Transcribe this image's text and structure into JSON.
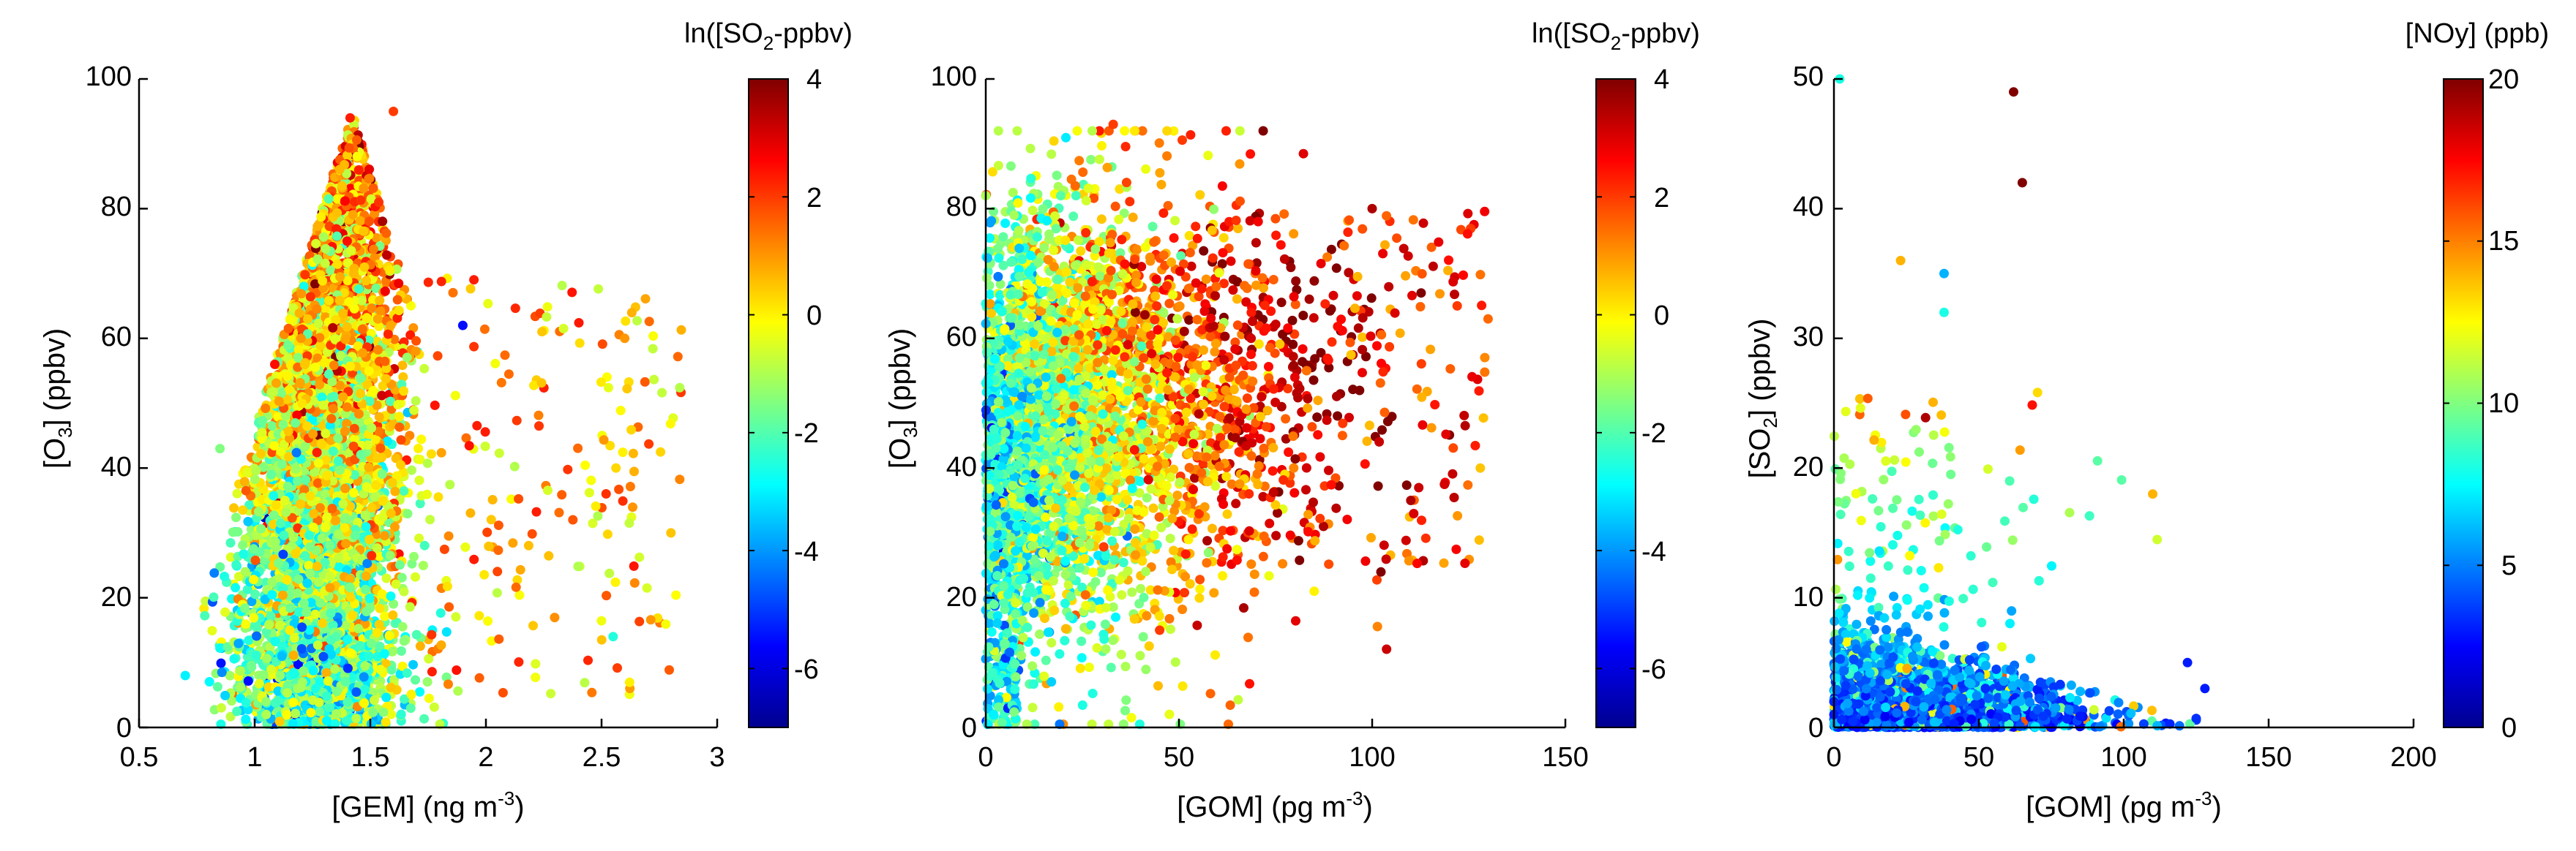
{
  "chart_data": [
    {
      "type": "scatter",
      "title": "",
      "xlabel": "[GEM]  (ng m^-3)",
      "ylabel": "[O3]  (ppbv)",
      "xlim": [
        0.5,
        3
      ],
      "ylim": [
        0,
        100
      ],
      "xticks": [
        "0.5",
        "1",
        "1.5",
        "2",
        "2.5",
        "3"
      ],
      "yticks": [
        "0",
        "20",
        "40",
        "60",
        "80",
        "100"
      ],
      "colorbar": {
        "label": "ln([SO2-ppbv)",
        "range": [
          -7,
          4
        ],
        "ticks": [
          "-6",
          "-4",
          "-2",
          "0",
          "2",
          "4"
        ],
        "colormap": "jet"
      },
      "points_description": "dense cloud of ~6000 points; GEM mostly 0.9-1.8 ng m^-3, O3 0-95 ppbv; sparse points GEM 1.8-2.85",
      "points_sample": [
        [
          0.7,
          8,
          -3
        ],
        [
          0.85,
          43,
          -1.5
        ],
        [
          1.2,
          60,
          1
        ],
        [
          1.4,
          75,
          2.5
        ],
        [
          1.6,
          95,
          2
        ],
        [
          1.9,
          62,
          -5.5
        ],
        [
          2.6,
          60,
          1
        ],
        [
          2.8,
          30,
          0.5
        ],
        [
          2.55,
          14,
          -2.5
        ],
        [
          1.05,
          2,
          -1
        ]
      ]
    },
    {
      "type": "scatter",
      "title": "",
      "xlabel": "[GOM]  (pg m^-3)",
      "ylabel": "[O3]  (ppbv)",
      "xlim": [
        0,
        150
      ],
      "ylim": [
        0,
        100
      ],
      "xticks": [
        "0",
        "50",
        "100",
        "150"
      ],
      "yticks": [
        "0",
        "20",
        "40",
        "60",
        "80",
        "100"
      ],
      "colorbar": {
        "label": "ln([SO2-ppbv)",
        "range": [
          -7,
          4
        ],
        "ticks": [
          "-6",
          "-4",
          "-2",
          "0",
          "2",
          "4"
        ],
        "colormap": "jet"
      },
      "points_description": "~5000 points; GOM 0-130 pg m^-3, O3 0-93 ppbv; higher SO2 at larger GOM",
      "points_sample": [
        [
          33,
          93,
          2
        ],
        [
          100,
          80,
          3.5
        ],
        [
          122,
          65,
          2
        ],
        [
          130,
          63,
          1.5
        ],
        [
          128,
          40,
          0.5
        ],
        [
          110,
          35,
          3.5
        ],
        [
          85,
          21,
          0
        ],
        [
          2,
          2,
          -3
        ],
        [
          45,
          15,
          2
        ],
        [
          0,
          82,
          -1
        ]
      ]
    },
    {
      "type": "scatter",
      "title": "",
      "xlabel": "[GOM]  (pg m^-3)",
      "ylabel": "[SO2]  (ppbv)",
      "xlim": [
        0,
        200
      ],
      "ylim": [
        0,
        50
      ],
      "xticks": [
        "0",
        "50",
        "100",
        "150",
        "200"
      ],
      "yticks": [
        "0",
        "10",
        "20",
        "30",
        "40",
        "50"
      ],
      "colorbar": {
        "label": "[NOy] (ppb)",
        "range": [
          0,
          20
        ],
        "ticks": [
          "0",
          "5",
          "10",
          "15",
          "20"
        ],
        "colormap": "jet"
      },
      "points_description": "~3000 points; GOM 0-130 pg m^-3, SO2 mostly below 12 ppbv, sparse up to 36 ppbv; two outliers near 49 and 42 ppbv",
      "points_sample": [
        [
          62,
          49,
          20
        ],
        [
          65,
          42,
          20
        ],
        [
          2,
          50,
          8
        ],
        [
          23,
          36,
          14
        ],
        [
          38,
          35,
          6
        ],
        [
          38,
          32,
          8
        ],
        [
          110,
          18,
          14
        ],
        [
          128,
          3,
          3
        ],
        [
          122,
          5,
          3
        ],
        [
          0,
          1,
          3
        ]
      ]
    }
  ]
}
